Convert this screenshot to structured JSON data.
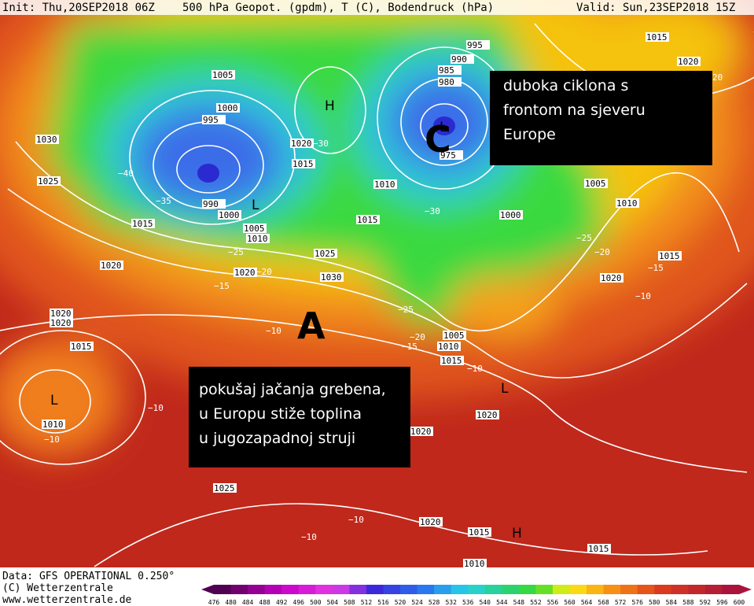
{
  "header": {
    "init": "Init: Thu,20SEP2018 06Z",
    "field": "500 hPa Geopot. (gpdm), T (C), Bodendruck (hPa)",
    "valid": "Valid: Sun,23SEP2018 15Z"
  },
  "annotations": {
    "north_box": [
      "duboka ciklona s",
      "frontom na sjeveru",
      "Europe"
    ],
    "south_box": [
      "pokušaj jačanja grebena,",
      "u Europu stiže toplina",
      "u jugozapadnoj struji"
    ],
    "high_marker": "A",
    "cyclone_marker": "C"
  },
  "pressure_centers": [
    "L",
    "L",
    "L",
    "L",
    "H",
    "H"
  ],
  "isobar_labels": [
    1005,
    1000,
    995,
    1030,
    1025,
    990,
    1000,
    1005,
    1010,
    1015,
    1025,
    1020,
    1030,
    1020,
    1020,
    1020,
    1015,
    1010,
    1020,
    1015,
    1010,
    1015,
    995,
    990,
    985,
    980,
    975,
    1005,
    1010,
    1000,
    1015,
    1020,
    1015,
    1020,
    1005,
    1010,
    1015,
    1020,
    1020,
    1025,
    1020,
    1015,
    1015,
    1010
  ],
  "temperature_labels": [
    "−40",
    "−35",
    "−30",
    "−25",
    "−20",
    "−15",
    "−10",
    "−10",
    "−10",
    "−30",
    "−25",
    "−20",
    "−15",
    "−10",
    "−25",
    "−20",
    "−15",
    "−10",
    "−10",
    "−10",
    "20"
  ],
  "footer": [
    "Data: GFS OPERATIONAL 0.250°",
    "(C) Wetterzentrale",
    "www.wetterzentrale.de"
  ],
  "colorbar": {
    "ticks": [
      476,
      480,
      484,
      488,
      492,
      496,
      500,
      504,
      508,
      512,
      516,
      520,
      524,
      528,
      532,
      536,
      540,
      544,
      548,
      552,
      556,
      560,
      564,
      568,
      572,
      576,
      580,
      584,
      588,
      592,
      596,
      600
    ]
  }
}
